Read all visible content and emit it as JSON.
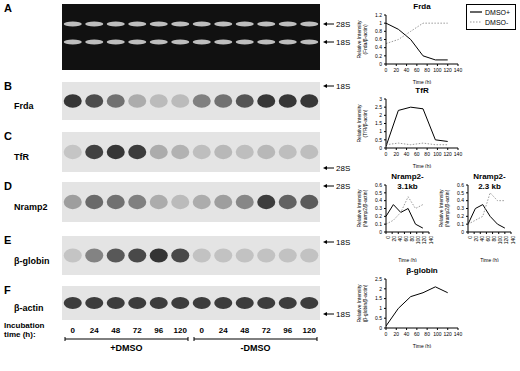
{
  "panels": [
    {
      "letter": "A",
      "arrows": [
        "28S",
        "18S"
      ]
    },
    {
      "letter": "B",
      "label": "Frda",
      "arrows": [
        "18S"
      ]
    },
    {
      "letter": "C",
      "label": "TfR",
      "arrows": [
        "28S"
      ]
    },
    {
      "letter": "D",
      "label": "Nramp2",
      "arrows": [
        "28S"
      ]
    },
    {
      "letter": "E",
      "label": "β-globin",
      "arrows": [
        "18S"
      ]
    },
    {
      "letter": "F",
      "label": "β-actin",
      "arrows": [
        "18S"
      ]
    }
  ],
  "lanes": {
    "title": "Incubation time (h):",
    "times": [
      0,
      24,
      48,
      72,
      96,
      120
    ],
    "groups": [
      "+DMSO",
      "-DMSO"
    ]
  },
  "legend_entries": [
    {
      "name": "DMSO+",
      "color": "#000000",
      "line_style": "solid"
    },
    {
      "name": "DMSO-",
      "color": "#999999",
      "line_style": "dotted"
    }
  ],
  "chart_data": [
    {
      "type": "line",
      "title": "Frda",
      "x_label": "Time (h)",
      "y_label": "Relative Intensity (Frda/β-actin)",
      "x": [
        0,
        24,
        48,
        72,
        96,
        120
      ],
      "xlim": [
        0,
        140
      ],
      "xticks": [
        0,
        20,
        40,
        60,
        80,
        100,
        120,
        140
      ],
      "ylim": [
        0,
        1.2
      ],
      "yticks": [
        0,
        0.2,
        0.4,
        0.6,
        0.8,
        1,
        1.2
      ],
      "series": [
        {
          "name": "DMSO+",
          "color": "#000000",
          "line_style": "solid",
          "values": [
            1.0,
            0.85,
            0.6,
            0.2,
            0.1,
            0.1
          ]
        },
        {
          "name": "DMSO-",
          "color": "#999999",
          "line_style": "dotted",
          "values": [
            0.5,
            0.6,
            0.8,
            1.0,
            1.0,
            1.0
          ]
        }
      ]
    },
    {
      "type": "line",
      "title": "TfR",
      "x_label": "Time (h)",
      "y_label": "Relative Intensity (TfR/β-actin)",
      "x": [
        0,
        24,
        48,
        72,
        96,
        120
      ],
      "xlim": [
        0,
        140
      ],
      "xticks": [
        0,
        20,
        40,
        60,
        80,
        100,
        120,
        140
      ],
      "ylim": [
        0,
        3
      ],
      "yticks": [
        0,
        0.5,
        1,
        1.5,
        2,
        2.5,
        3
      ],
      "series": [
        {
          "name": "DMSO+",
          "color": "#000000",
          "line_style": "solid",
          "values": [
            0.1,
            2.3,
            2.5,
            2.4,
            0.5,
            0.4
          ]
        },
        {
          "name": "DMSO-",
          "color": "#999999",
          "line_style": "dotted",
          "values": [
            0.2,
            0.3,
            0.2,
            0.3,
            0.2,
            0.2
          ]
        }
      ]
    },
    {
      "type": "line",
      "title": "Nramp2-3.1kb",
      "x_label": "Time (h)",
      "y_label": "Relative Intensity (Nramp2/β-actin)",
      "x": [
        0,
        24,
        48,
        72,
        96,
        120
      ],
      "xlim": [
        0,
        140
      ],
      "xticks": [
        0,
        20,
        40,
        60,
        80,
        100,
        120,
        140
      ],
      "ylim": [
        0,
        0.6
      ],
      "yticks": [
        0,
        0.1,
        0.2,
        0.3,
        0.4,
        0.5,
        0.6
      ],
      "series": [
        {
          "name": "DMSO+",
          "color": "#000000",
          "line_style": "solid",
          "values": [
            0.2,
            0.35,
            0.25,
            0.3,
            0.1,
            0.05
          ]
        },
        {
          "name": "DMSO-",
          "color": "#999999",
          "line_style": "dotted",
          "values": [
            0.1,
            0.15,
            0.25,
            0.45,
            0.3,
            0.35
          ]
        }
      ]
    },
    {
      "type": "line",
      "title": "Nramp2-2.3 kb",
      "x_label": "Time (h)",
      "y_label": "Relative Intensity (Nramp2/β-actin)",
      "x": [
        0,
        24,
        48,
        72,
        96,
        120
      ],
      "xlim": [
        0,
        140
      ],
      "xticks": [
        0,
        20,
        40,
        60,
        80,
        100,
        120,
        140
      ],
      "ylim": [
        0,
        0.6
      ],
      "yticks": [
        0,
        0.1,
        0.2,
        0.3,
        0.4,
        0.5,
        0.6
      ],
      "series": [
        {
          "name": "DMSO+",
          "color": "#000000",
          "line_style": "solid",
          "values": [
            0.1,
            0.3,
            0.35,
            0.2,
            0.1,
            0.05
          ]
        },
        {
          "name": "DMSO-",
          "color": "#999999",
          "line_style": "dotted",
          "values": [
            0.1,
            0.15,
            0.2,
            0.5,
            0.4,
            0.4
          ]
        }
      ]
    },
    {
      "type": "line",
      "title": "β-globin",
      "x_label": "Time (h)",
      "y_label": "Relative Intensity (β-globin/β-actin)",
      "x": [
        0,
        24,
        48,
        72,
        96,
        120
      ],
      "xlim": [
        0,
        140
      ],
      "xticks": [
        0,
        20,
        40,
        60,
        80,
        100,
        120,
        140
      ],
      "ylim": [
        0,
        2.5
      ],
      "yticks": [
        0,
        0.5,
        1,
        1.5,
        2,
        2.5
      ],
      "series": [
        {
          "name": "DMSO+",
          "color": "#000000",
          "line_style": "solid",
          "values": [
            0.1,
            1.0,
            1.6,
            1.8,
            2.1,
            1.8
          ]
        }
      ]
    }
  ]
}
